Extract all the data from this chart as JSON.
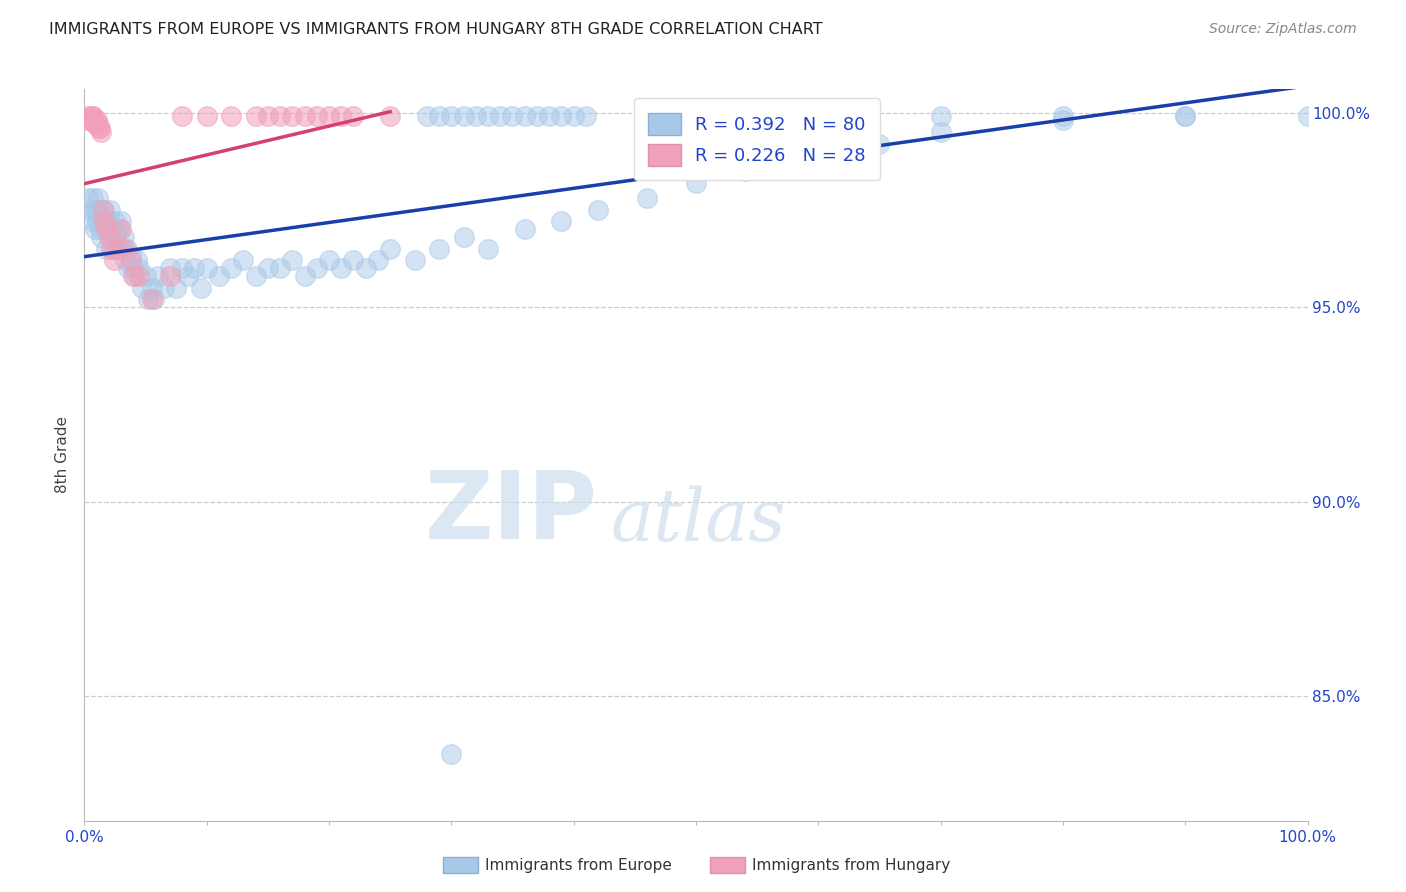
{
  "title": "IMMIGRANTS FROM EUROPE VS IMMIGRANTS FROM HUNGARY 8TH GRADE CORRELATION CHART",
  "source": "Source: ZipAtlas.com",
  "ylabel": "8th Grade",
  "xlim": [
    0.0,
    1.0
  ],
  "ylim": [
    0.818,
    1.006
  ],
  "blue_R": 0.392,
  "blue_N": 80,
  "pink_R": 0.226,
  "pink_N": 28,
  "blue_color": "#a8c8e8",
  "pink_color": "#f0a0b8",
  "line_blue": "#1a3faa",
  "line_pink": "#d44070",
  "legend_blue": "Immigrants from Europe",
  "legend_pink": "Immigrants from Hungary",
  "watermark_zip": "ZIP",
  "watermark_atlas": "atlas",
  "ytick_vals": [
    0.85,
    0.9,
    0.95,
    1.0
  ],
  "ytick_labels": [
    "85.0%",
    "90.0%",
    "95.0%",
    "100.0%"
  ],
  "blue_x": [
    0.003,
    0.005,
    0.006,
    0.007,
    0.008,
    0.009,
    0.01,
    0.01,
    0.011,
    0.012,
    0.013,
    0.014,
    0.015,
    0.016,
    0.017,
    0.018,
    0.019,
    0.02,
    0.021,
    0.022,
    0.023,
    0.024,
    0.025,
    0.026,
    0.028,
    0.03,
    0.031,
    0.032,
    0.033,
    0.035,
    0.036,
    0.038,
    0.04,
    0.041,
    0.043,
    0.045,
    0.047,
    0.05,
    0.052,
    0.055,
    0.057,
    0.06,
    0.065,
    0.07,
    0.075,
    0.08,
    0.085,
    0.09,
    0.095,
    0.1,
    0.11,
    0.12,
    0.13,
    0.14,
    0.15,
    0.16,
    0.17,
    0.18,
    0.19,
    0.2,
    0.21,
    0.22,
    0.23,
    0.24,
    0.25,
    0.27,
    0.29,
    0.31,
    0.33,
    0.36,
    0.39,
    0.42,
    0.46,
    0.5,
    0.54,
    0.6,
    0.65,
    0.7,
    0.8,
    0.9
  ],
  "blue_y": [
    0.978,
    0.975,
    0.972,
    0.978,
    0.975,
    0.97,
    0.975,
    0.972,
    0.978,
    0.975,
    0.97,
    0.968,
    0.972,
    0.975,
    0.972,
    0.965,
    0.97,
    0.972,
    0.975,
    0.968,
    0.97,
    0.965,
    0.972,
    0.968,
    0.97,
    0.972,
    0.965,
    0.968,
    0.962,
    0.965,
    0.96,
    0.963,
    0.96,
    0.958,
    0.962,
    0.96,
    0.955,
    0.958,
    0.952,
    0.955,
    0.952,
    0.958,
    0.955,
    0.96,
    0.955,
    0.96,
    0.958,
    0.96,
    0.955,
    0.96,
    0.958,
    0.96,
    0.962,
    0.958,
    0.96,
    0.96,
    0.962,
    0.958,
    0.96,
    0.962,
    0.96,
    0.962,
    0.96,
    0.962,
    0.965,
    0.962,
    0.965,
    0.968,
    0.965,
    0.97,
    0.972,
    0.975,
    0.978,
    0.982,
    0.985,
    0.99,
    0.992,
    0.995,
    0.998,
    0.999
  ],
  "blue_outlier_x": [
    0.3
  ],
  "blue_outlier_y": [
    0.835
  ],
  "pink_x": [
    0.003,
    0.004,
    0.005,
    0.006,
    0.007,
    0.007,
    0.008,
    0.009,
    0.009,
    0.01,
    0.011,
    0.012,
    0.013,
    0.014,
    0.015,
    0.016,
    0.018,
    0.02,
    0.022,
    0.024,
    0.027,
    0.03,
    0.033,
    0.038,
    0.04,
    0.045,
    0.055,
    0.07
  ],
  "pink_y": [
    0.999,
    0.998,
    0.998,
    0.999,
    0.998,
    0.999,
    0.998,
    0.998,
    0.997,
    0.998,
    0.997,
    0.996,
    0.996,
    0.995,
    0.975,
    0.972,
    0.97,
    0.968,
    0.965,
    0.962,
    0.965,
    0.97,
    0.965,
    0.962,
    0.958,
    0.958,
    0.952,
    0.958
  ],
  "blue_top_x": [
    0.28,
    0.29,
    0.3,
    0.31,
    0.32,
    0.33,
    0.34,
    0.35,
    0.36,
    0.37,
    0.38,
    0.39,
    0.4,
    0.41,
    0.5,
    0.6,
    0.7,
    0.8,
    0.9,
    1.0
  ],
  "blue_top_y": [
    0.999,
    0.999,
    0.999,
    0.999,
    0.999,
    0.999,
    0.999,
    0.999,
    0.999,
    0.999,
    0.999,
    0.999,
    0.999,
    0.999,
    0.999,
    0.999,
    0.999,
    0.999,
    0.999,
    0.999
  ],
  "pink_top_x": [
    0.08,
    0.1,
    0.12,
    0.14,
    0.15,
    0.16,
    0.17,
    0.18,
    0.19,
    0.2,
    0.21,
    0.22,
    0.25
  ],
  "pink_top_y": [
    0.999,
    0.999,
    0.999,
    0.999,
    0.999,
    0.999,
    0.999,
    0.999,
    0.999,
    0.999,
    0.999,
    0.999,
    0.999
  ],
  "marker_size": 200
}
